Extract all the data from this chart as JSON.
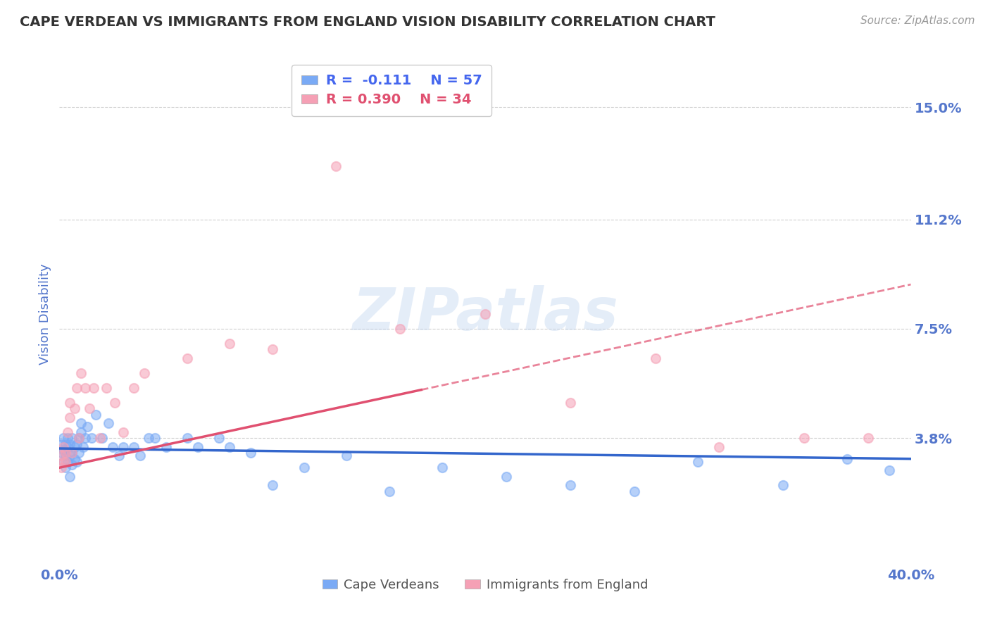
{
  "title": "CAPE VERDEAN VS IMMIGRANTS FROM ENGLAND VISION DISABILITY CORRELATION CHART",
  "source": "Source: ZipAtlas.com",
  "ylabel": "Vision Disability",
  "xlim": [
    0.0,
    0.4
  ],
  "ylim": [
    -0.005,
    0.165
  ],
  "yticks": [
    0.038,
    0.075,
    0.112,
    0.15
  ],
  "ytick_labels": [
    "3.8%",
    "7.5%",
    "11.2%",
    "15.0%"
  ],
  "xticks": [
    0.0,
    0.4
  ],
  "xtick_labels": [
    "0.0%",
    "40.0%"
  ],
  "watermark": "ZIPatlas",
  "cape_verdean_x": [
    0.001,
    0.001,
    0.002,
    0.002,
    0.002,
    0.003,
    0.003,
    0.003,
    0.004,
    0.004,
    0.004,
    0.005,
    0.005,
    0.005,
    0.006,
    0.006,
    0.006,
    0.007,
    0.007,
    0.008,
    0.008,
    0.009,
    0.009,
    0.01,
    0.01,
    0.011,
    0.012,
    0.013,
    0.015,
    0.017,
    0.02,
    0.023,
    0.025,
    0.028,
    0.03,
    0.035,
    0.038,
    0.042,
    0.045,
    0.05,
    0.06,
    0.065,
    0.075,
    0.08,
    0.09,
    0.1,
    0.115,
    0.135,
    0.155,
    0.18,
    0.21,
    0.24,
    0.27,
    0.3,
    0.34,
    0.37,
    0.39
  ],
  "cape_verdean_y": [
    0.033,
    0.036,
    0.03,
    0.034,
    0.038,
    0.028,
    0.032,
    0.036,
    0.03,
    0.035,
    0.038,
    0.025,
    0.032,
    0.036,
    0.029,
    0.033,
    0.038,
    0.031,
    0.035,
    0.03,
    0.036,
    0.033,
    0.038,
    0.04,
    0.043,
    0.035,
    0.038,
    0.042,
    0.038,
    0.046,
    0.038,
    0.043,
    0.035,
    0.032,
    0.035,
    0.035,
    0.032,
    0.038,
    0.038,
    0.035,
    0.038,
    0.035,
    0.038,
    0.035,
    0.033,
    0.022,
    0.028,
    0.032,
    0.02,
    0.028,
    0.025,
    0.022,
    0.02,
    0.03,
    0.022,
    0.031,
    0.027
  ],
  "england_x": [
    0.001,
    0.001,
    0.002,
    0.002,
    0.003,
    0.003,
    0.004,
    0.005,
    0.005,
    0.006,
    0.007,
    0.008,
    0.009,
    0.01,
    0.012,
    0.014,
    0.016,
    0.019,
    0.022,
    0.026,
    0.03,
    0.035,
    0.04,
    0.06,
    0.08,
    0.1,
    0.13,
    0.16,
    0.2,
    0.24,
    0.28,
    0.31,
    0.35,
    0.38
  ],
  "england_y": [
    0.028,
    0.032,
    0.03,
    0.035,
    0.033,
    0.03,
    0.04,
    0.045,
    0.05,
    0.033,
    0.048,
    0.055,
    0.038,
    0.06,
    0.055,
    0.048,
    0.055,
    0.038,
    0.055,
    0.05,
    0.04,
    0.055,
    0.06,
    0.065,
    0.07,
    0.068,
    0.13,
    0.075,
    0.08,
    0.05,
    0.065,
    0.035,
    0.038,
    0.038
  ],
  "blue_color": "#7aaaf5",
  "pink_color": "#f5a0b5",
  "blue_line_color": "#3366cc",
  "pink_line_color": "#e05070",
  "trendline_blue_x0": 0.0,
  "trendline_blue_y0": 0.0345,
  "trendline_blue_x1": 0.4,
  "trendline_blue_y1": 0.031,
  "trendline_pink_x0": 0.0,
  "trendline_pink_y0": 0.028,
  "trendline_pink_x1": 0.4,
  "trendline_pink_y1": 0.09,
  "trendline_pink_dashed_x0": 0.17,
  "trendline_pink_dashed_x1": 0.4,
  "background_color": "#ffffff",
  "grid_color": "#bbbbbb",
  "title_color": "#333333",
  "axis_label_color": "#5577cc",
  "tick_color": "#5577cc",
  "legend_text_color_blue": "#4466ee",
  "legend_text_color_pink": "#e05070",
  "legend_bg": "#ffffff",
  "legend_edge": "#cccccc"
}
